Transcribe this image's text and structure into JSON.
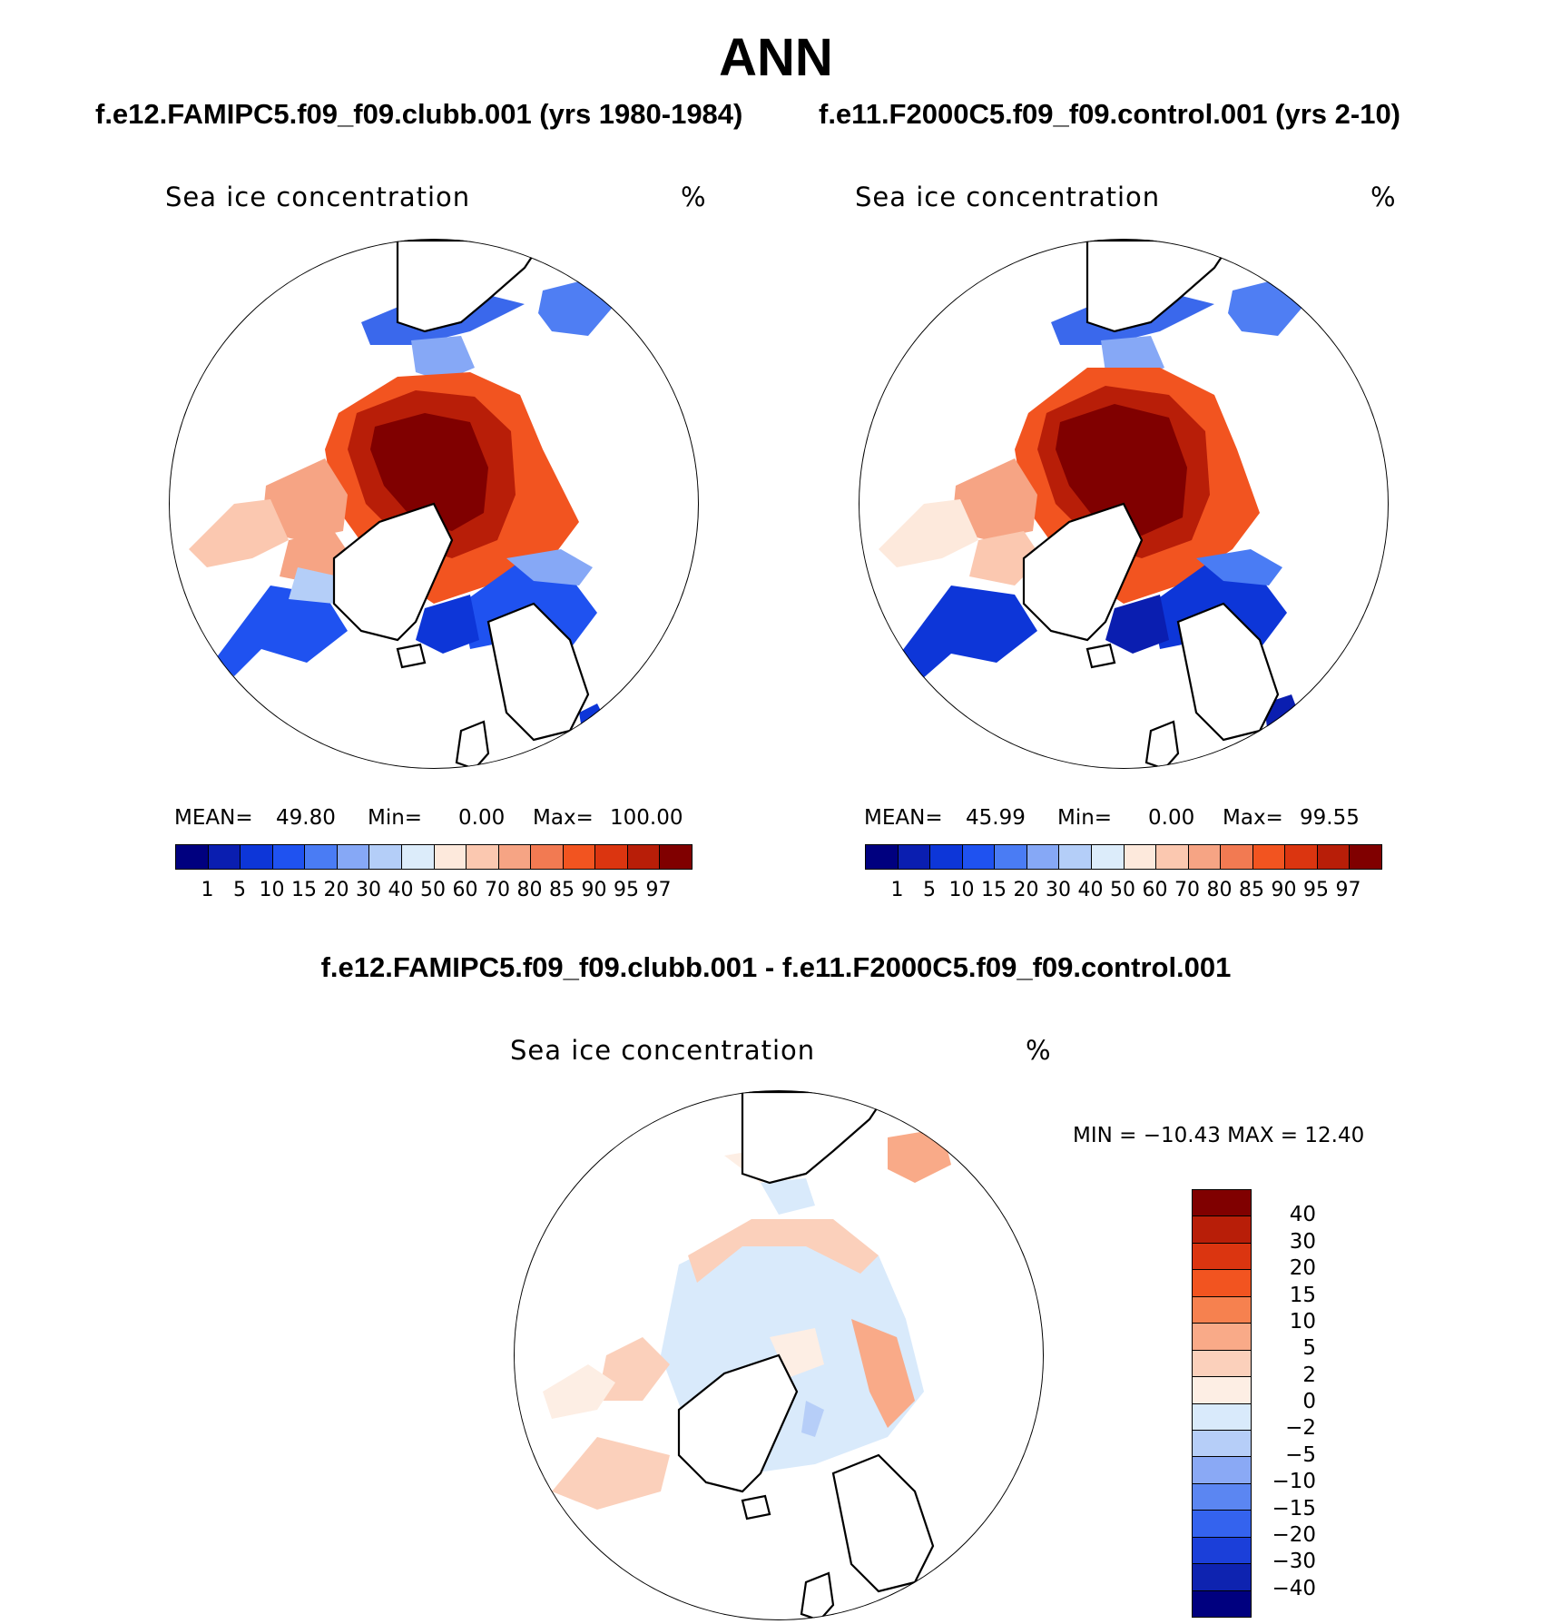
{
  "title": "ANN",
  "panels": [
    {
      "subtitle": "f.e12.FAMIPC5.f09_f09.clubb.001 (yrs 1980-1984)",
      "variable": "Sea ice concentration",
      "units": "%",
      "stats": {
        "mean_label": "MEAN=",
        "mean": "49.80",
        "min_label": "Min=",
        "min": "0.00",
        "max_label": "Max=",
        "max": "100.00"
      }
    },
    {
      "subtitle": "f.e11.F2000C5.f09_f09.control.001 (yrs 2-10)",
      "variable": "Sea ice concentration",
      "units": "%",
      "stats": {
        "mean_label": "MEAN=",
        "mean": "45.99",
        "min_label": "Min=",
        "min": "0.00",
        "max_label": "Max=",
        "max": "99.55"
      }
    }
  ],
  "diff_panel": {
    "subtitle": "f.e12.FAMIPC5.f09_f09.clubb.001 - f.e11.F2000C5.f09_f09.control.001",
    "variable": "Sea ice concentration",
    "units": "%",
    "minmax": "MIN = −10.43 MAX =   12.40"
  },
  "abs_colorbar": {
    "colors": [
      "#00007f",
      "#0a1eb0",
      "#0d36d8",
      "#1f52f0",
      "#4a7cf4",
      "#86a8f6",
      "#b4cef8",
      "#dcecfa",
      "#fde9dc",
      "#fbc8b0",
      "#f6a484",
      "#f27a52",
      "#f25420",
      "#db3510",
      "#b81e08",
      "#800000"
    ],
    "ticks": [
      "1",
      "5",
      "10",
      "15",
      "20",
      "30",
      "40",
      "50",
      "60",
      "70",
      "80",
      "85",
      "90",
      "95",
      "97"
    ]
  },
  "diff_colorbar": {
    "colors": [
      "#800000",
      "#b81e08",
      "#db3510",
      "#f25420",
      "#f6814f",
      "#f9aa88",
      "#fbd0bb",
      "#fdeee4",
      "#d9eafb",
      "#b6cef8",
      "#8aa9f5",
      "#5b86f2",
      "#3463ee",
      "#1b3fd9",
      "#0e23b0",
      "#00007f"
    ],
    "ticks": [
      "40",
      "30",
      "20",
      "15",
      "10",
      "5",
      "2",
      "0",
      "−2",
      "−5",
      "−10",
      "−15",
      "−20",
      "−30",
      "−40"
    ]
  },
  "map_features": {
    "land_outlines": [
      "greenland-coast",
      "north-america-coast",
      "eurasia-coast",
      "scandinavia-coast",
      "iceland",
      "british-isles",
      "arctic-archipelago",
      "chukotka"
    ]
  }
}
